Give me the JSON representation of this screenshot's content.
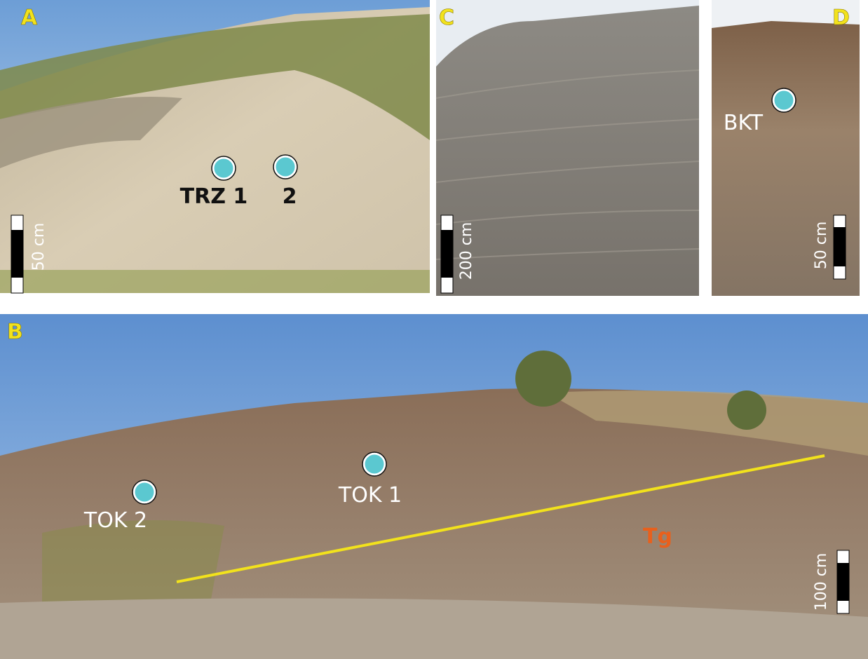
{
  "panels": {
    "a": {
      "label": "A",
      "samples": [
        "TRZ 1",
        "2"
      ],
      "scale": "50 cm"
    },
    "c": {
      "label": "C",
      "scale": "200 cm"
    },
    "d": {
      "label": "D",
      "samples": [
        "BKT"
      ],
      "scale": "50 cm"
    },
    "b": {
      "label": "B",
      "samples": [
        "TOK 2",
        "TOK 1"
      ],
      "unit": "Tg",
      "scale": "100 cm"
    }
  }
}
